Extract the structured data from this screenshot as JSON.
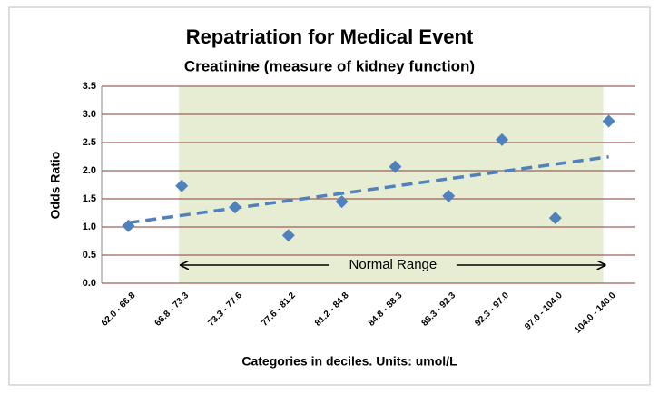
{
  "chart_data": {
    "type": "scatter",
    "title": "Repatriation for Medical Event",
    "subtitle": "Creatinine (measure of kidney function)",
    "x_label": "Categories in deciles.  Units: umol/L",
    "y_label": "Odds Ratio",
    "categories": [
      "62.0 - 66.8",
      "66.8 - 73.3",
      "73.3 - 77.6",
      "77.6 - 81.2",
      "81.2 - 84.8",
      "84.8 - 88.3",
      "88.3 - 92.3",
      "92.3 - 97.0",
      "97.0 - 104.0",
      "104.0 - 140.0"
    ],
    "values": [
      1.02,
      1.73,
      1.35,
      0.85,
      1.45,
      2.07,
      1.55,
      2.55,
      1.16,
      2.88
    ],
    "color": "#4f81bd",
    "trendline": "linear",
    "ylim": [
      0,
      3.5
    ],
    "yticks": [
      {
        "value": 0,
        "label": "0.0"
      },
      {
        "value": 0.5,
        "label": "0.5"
      },
      {
        "value": 1,
        "label": "1.0"
      },
      {
        "value": 1.5,
        "label": "1.5"
      },
      {
        "value": 2,
        "label": "2.0"
      },
      {
        "value": 2.5,
        "label": "2.5"
      },
      {
        "value": 3,
        "label": "3.0"
      },
      {
        "value": 3.5,
        "label": "3.5"
      }
    ],
    "grid": true,
    "annotation": {
      "text": "Normal Range",
      "from": "66.8 - 73.3",
      "to": "104.0 - 140.0"
    }
  }
}
